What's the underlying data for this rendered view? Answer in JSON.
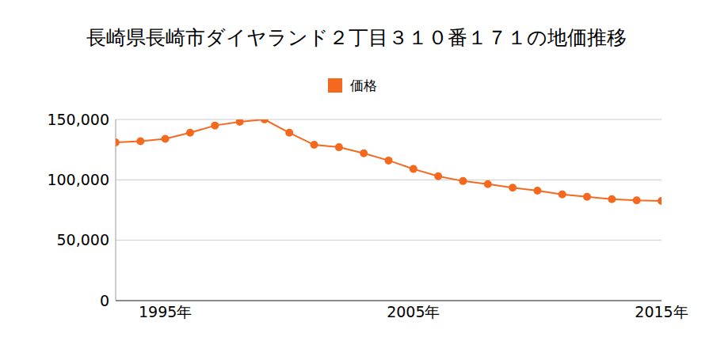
{
  "chart_data": {
    "type": "line",
    "title": "長崎県長崎市ダイヤランド２丁目３１０番１７１の地価推移",
    "x": [
      1993,
      1994,
      1995,
      1996,
      1997,
      1998,
      1999,
      2000,
      2001,
      2002,
      2003,
      2004,
      2005,
      2006,
      2007,
      2008,
      2009,
      2010,
      2011,
      2012,
      2013,
      2014,
      2015
    ],
    "series": [
      {
        "name": "価格",
        "color": "#f5691e",
        "marker": "circle",
        "values": [
          131000,
          132000,
          134000,
          139000,
          145000,
          148000,
          150000,
          139000,
          129000,
          127000,
          122000,
          116000,
          109000,
          103000,
          99000,
          96500,
          93500,
          91000,
          88000,
          86000,
          84000,
          83000,
          82500
        ]
      }
    ],
    "xlim": [
      1993,
      2015
    ],
    "xticks": [
      {
        "value": 1995,
        "label": "1995年"
      },
      {
        "value": 2005,
        "label": "2005年"
      },
      {
        "value": 2015,
        "label": "2015年"
      }
    ],
    "ylim": [
      0,
      150000
    ],
    "yticks": [
      0,
      {
        "value": 50000,
        "label": "50,000"
      },
      {
        "value": 100000,
        "label": "100,000"
      },
      {
        "value": 150000,
        "label": "150,000"
      }
    ],
    "grid": true,
    "legend": "top"
  }
}
